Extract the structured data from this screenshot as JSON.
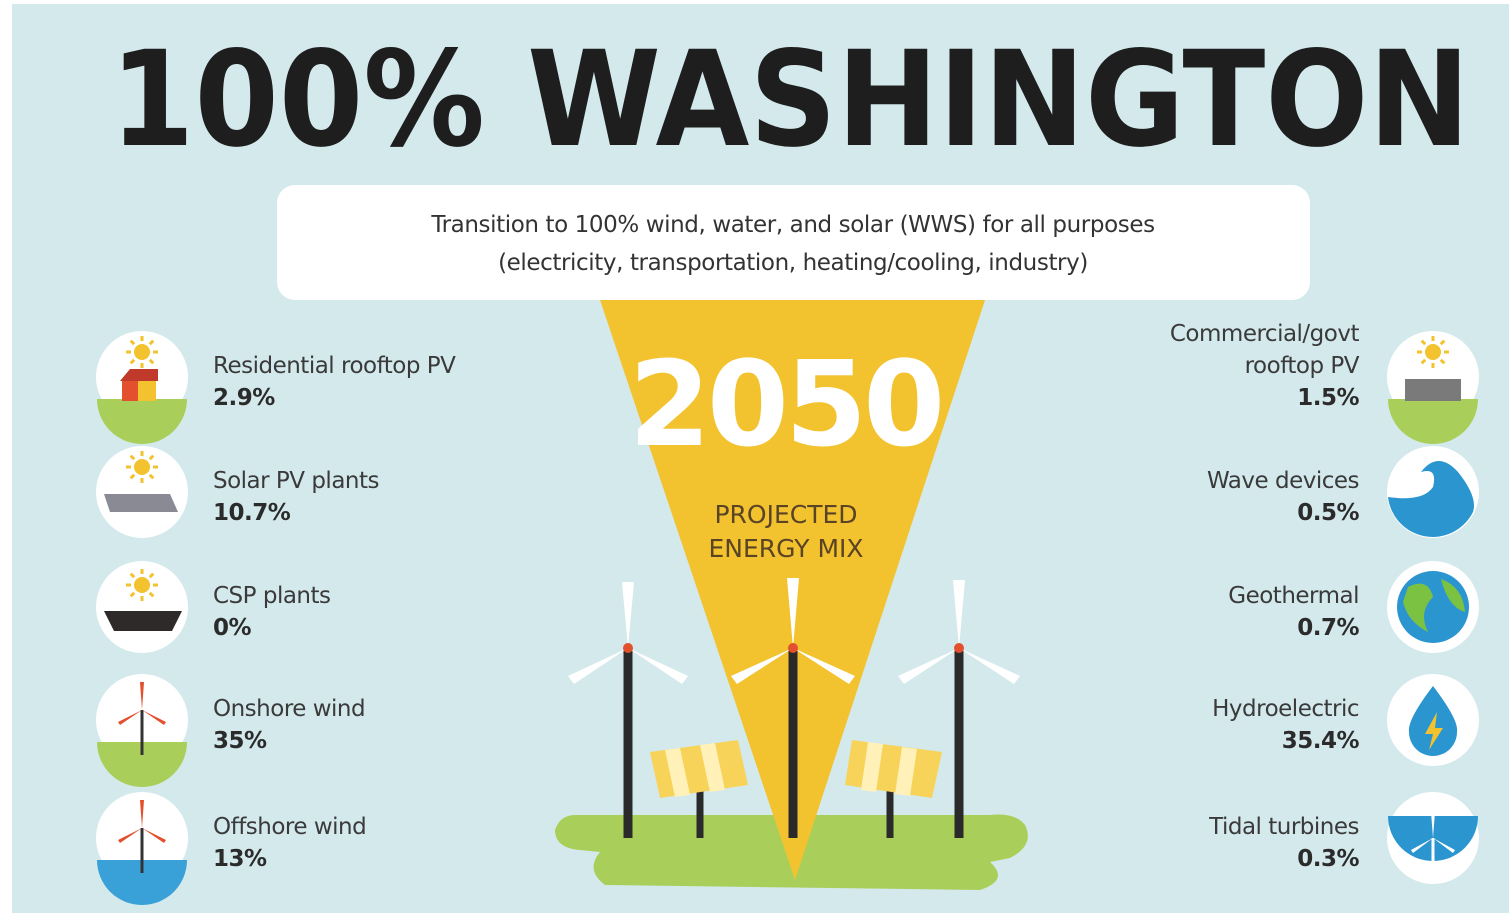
{
  "title": "100% WASHINGTON",
  "subtitle": [
    "Transition to 100% wind, water, and solar (WWS) for all purposes",
    "(electricity, transportation, heating/cooling, industry)"
  ],
  "center": {
    "year": "2050",
    "label": [
      "PROJECTED",
      "ENERGY MIX"
    ]
  },
  "left": [
    {
      "label": [
        "Residential rooftop PV"
      ],
      "value": "2.9%"
    },
    {
      "label": [
        "Solar PV plants"
      ],
      "value": "10.7%"
    },
    {
      "label": [
        "CSP plants"
      ],
      "value": "0%"
    },
    {
      "label": [
        "Onshore wind"
      ],
      "value": "35%"
    },
    {
      "label": [
        "Offshore wind"
      ],
      "value": "13%"
    }
  ],
  "right": [
    {
      "label": [
        "Commercial/govt",
        "rooftop PV"
      ],
      "value": "1.5%"
    },
    {
      "label": [
        "Wave devices"
      ],
      "value": "0.5%"
    },
    {
      "label": [
        "Geothermal"
      ],
      "value": "0.7%"
    },
    {
      "label": [
        "Hydroelectric"
      ],
      "value": "35.4%"
    },
    {
      "label": [
        "Tidal turbines"
      ],
      "value": "0.3%"
    }
  ]
}
